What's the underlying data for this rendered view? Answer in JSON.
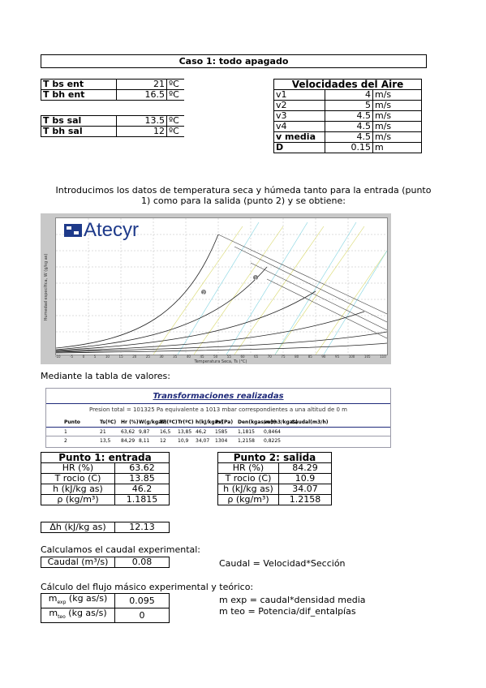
{
  "title": "Caso 1: todo apagado",
  "temps": [
    {
      "label": "T bs ent",
      "value": "21",
      "unit": "ºC"
    },
    {
      "label": "T bh ent",
      "value": "16.5",
      "unit": "ºC"
    },
    {
      "label": "T bs sal",
      "value": "13.5",
      "unit": "ºC"
    },
    {
      "label": "T bh sal",
      "value": "12",
      "unit": "ºC"
    }
  ],
  "velocities": {
    "header": "Velocidades del Aire",
    "rows": [
      {
        "label": "v1",
        "value": "4",
        "unit": "m/s",
        "bold": false
      },
      {
        "label": "v2",
        "value": "5",
        "unit": "m/s",
        "bold": false
      },
      {
        "label": "v3",
        "value": "4.5",
        "unit": "m/s",
        "bold": false
      },
      {
        "label": "v4",
        "value": "4.5",
        "unit": "m/s",
        "bold": false
      },
      {
        "label": "v media",
        "value": "4.5",
        "unit": "m/s",
        "bold": true
      },
      {
        "label": "D",
        "value": "0.15",
        "unit": "m",
        "bold": true
      }
    ]
  },
  "intro_line1": "Introducimos los datos de temperatura seca y húmeda tanto para la entrada (punto",
  "intro_line2": "1) como para la salida (punto 2) y se obtiene:",
  "chart_logo": "Atecyr",
  "chart_xlabel": "Temperatura Seca, Ts (°C)",
  "chart_ylabel": "Humedad específica, W (g/kg as)",
  "chart_x_ticks": [
    "-10",
    "-5",
    "0",
    "5",
    "10",
    "15",
    "20",
    "25",
    "30",
    "35",
    "40",
    "45",
    "50",
    "55",
    "60",
    "65",
    "70",
    "75",
    "80",
    "85",
    "90",
    "95",
    "100",
    "105",
    "110"
  ],
  "chart_point_1": "1",
  "chart_point_2": "2",
  "tabla_text": "Mediante la tabla de valores:",
  "transformaciones": {
    "title": "Transformaciones realizadas",
    "subtitle": "Presion total = 101325 Pa   equivalente a 1013 mbar   correspondientes a una altitud de 0  m",
    "headers": [
      "Punto",
      "Ts(ºC)",
      "Hr (%)",
      "W(g/kgas)",
      "Th(ºC)",
      "Tr(ºC)",
      "h(kJ/kgas)",
      "Pv(Pa)",
      "Den(kgas/m3)",
      "ve(m3/kgas)",
      "Caudal(m3/h)"
    ],
    "rows": [
      [
        "1",
        "21",
        "63,62",
        "9,87",
        "16,5",
        "13,85",
        "46,2",
        "1585",
        "1,1815",
        "0,8464",
        ""
      ],
      [
        "2",
        "13,5",
        "84,29",
        "8,11",
        "12",
        "10,9",
        "34,07",
        "1304",
        "1,2158",
        "0,8225",
        ""
      ]
    ]
  },
  "punto1": {
    "title": "Punto 1: entrada",
    "rows": [
      {
        "label": "HR (%)",
        "value": "63.62"
      },
      {
        "label": "T rocio (C)",
        "value": "13.85"
      },
      {
        "label": "h (kJ/kg as)",
        "value": "46.2"
      },
      {
        "label": "ρ (kg/m³)",
        "value": "1.1815"
      }
    ]
  },
  "punto2": {
    "title": "Punto 2: salida",
    "rows": [
      {
        "label": "HR (%)",
        "value": "84.29"
      },
      {
        "label": "T rocio (C)",
        "value": "10.9"
      },
      {
        "label": "h (kJ/kg as)",
        "value": "34.07"
      },
      {
        "label": "ρ (kg/m³)",
        "value": "1.2158"
      }
    ]
  },
  "delta_h": {
    "label": "Δh (kJ/kg as)",
    "value": "12.13"
  },
  "caudal_heading": "Calculamos el caudal experimental:",
  "caudal": {
    "label": "Caudal (m³/s)",
    "value": "0.08"
  },
  "caudal_formula": "Caudal = Velocidad*Sección",
  "flujo_heading": "Cálculo del flujo másico experimental y teórico:",
  "m_exp": {
    "label_main": "m",
    "label_sub": "exp",
    "label_rest": " (kg as/s)",
    "value": "0.095"
  },
  "m_teo": {
    "label_main": "m",
    "label_sub": "teo",
    "label_rest": " (kg as/s)",
    "value": "0"
  },
  "m_exp_formula": "m exp = caudal*densidad media",
  "m_teo_formula": "m teo = Potencia/dif_entalpías",
  "colors": {
    "chart_frame": "#c8c8c8",
    "logo_blue": "#1e3a8a",
    "transform_title": "#1f2a7a"
  }
}
